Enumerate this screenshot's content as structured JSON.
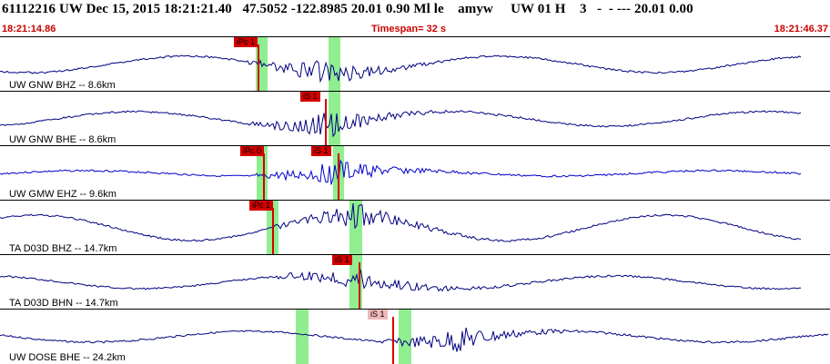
{
  "header": {
    "info": "61112216 UW Dec 15, 2015 18:21:21.40   47.5052 -122.8985 20.01 0.90 Ml le    amyw     UW 01 H    3   -  - --- 20.01 0.00",
    "time_start": "18:21:14.86",
    "timespan": "Timespan=  32 s",
    "time_end": "18:21:46.37"
  },
  "traces": [
    {
      "label": "UW GNW BHZ -- 8.6km",
      "picks": [
        "iPc 1"
      ],
      "color": "#000080"
    },
    {
      "label": "UW GNW BHE -- 8.6km",
      "picks": [
        "iS 1"
      ],
      "color": "#000080"
    },
    {
      "label": "UW GMW EHZ -- 9.6km",
      "picks": [
        "iPc 0",
        "iS 1"
      ],
      "color": "#0000cc"
    },
    {
      "label": "TA D03D BHZ -- 14.7km",
      "picks": [
        "iPc 1"
      ],
      "color": "#000080"
    },
    {
      "label": "TA D03D BHN -- 14.7km",
      "picks": [
        "iS 1"
      ],
      "color": "#000080"
    },
    {
      "label": "UW DOSE BHE -- 24.2km",
      "picks": [
        "iS 1"
      ],
      "color": "#000080"
    }
  ],
  "colors": {
    "pick": "#d40000",
    "window": "#90ee90",
    "time_text": "#cc0000"
  }
}
